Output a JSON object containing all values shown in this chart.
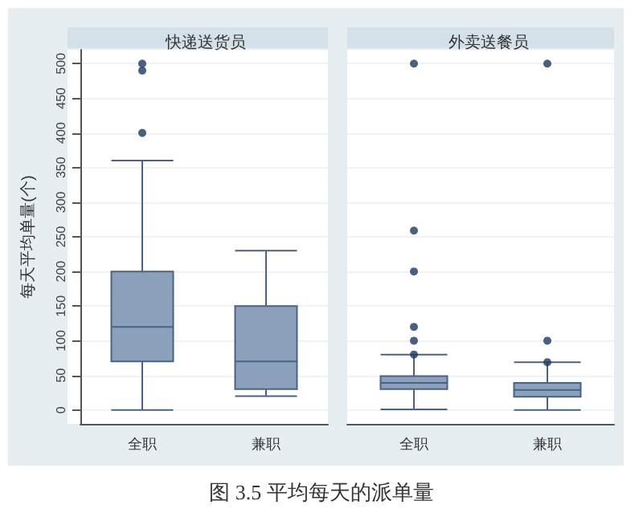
{
  "chart_data": [
    {
      "type": "box",
      "title": "快递送货员",
      "ylabel": "每天平均单量(个)",
      "categories": [
        "全职",
        "兼职"
      ],
      "color": "#8ba0ba",
      "boxes": [
        {
          "low": 0,
          "q1": 70,
          "median": 120,
          "q3": 200,
          "high": 360,
          "outliers": [
            400,
            490,
            500
          ]
        },
        {
          "low": 20,
          "q1": 30,
          "median": 70,
          "q3": 150,
          "high": 230
        }
      ],
      "ylim": [
        -20,
        520
      ],
      "yticks": [
        0,
        50,
        100,
        150,
        200,
        250,
        300,
        350,
        400,
        450,
        500
      ],
      "grid": "y",
      "annotations": [
        "图 3.5  平均每天的派单量"
      ]
    },
    {
      "type": "box",
      "title": "外卖送餐员",
      "categories": [
        "全职",
        "兼职"
      ],
      "color": "#8ba0ba",
      "boxes": [
        {
          "low": 1,
          "q1": 30,
          "median": 39,
          "q3": 49,
          "high": 80,
          "outliers": [
            80,
            100,
            120,
            200,
            259,
            500
          ]
        },
        {
          "low": 0,
          "q1": 19,
          "median": 29,
          "q3": 39,
          "high": 69,
          "outliers": [
            69,
            100,
            500
          ]
        }
      ],
      "ylim": [
        -20,
        520
      ],
      "yticks": [
        0,
        50,
        100,
        150,
        200,
        250,
        300,
        350,
        400,
        450,
        500
      ],
      "grid": "y",
      "tick_labels": "x"
    }
  ]
}
